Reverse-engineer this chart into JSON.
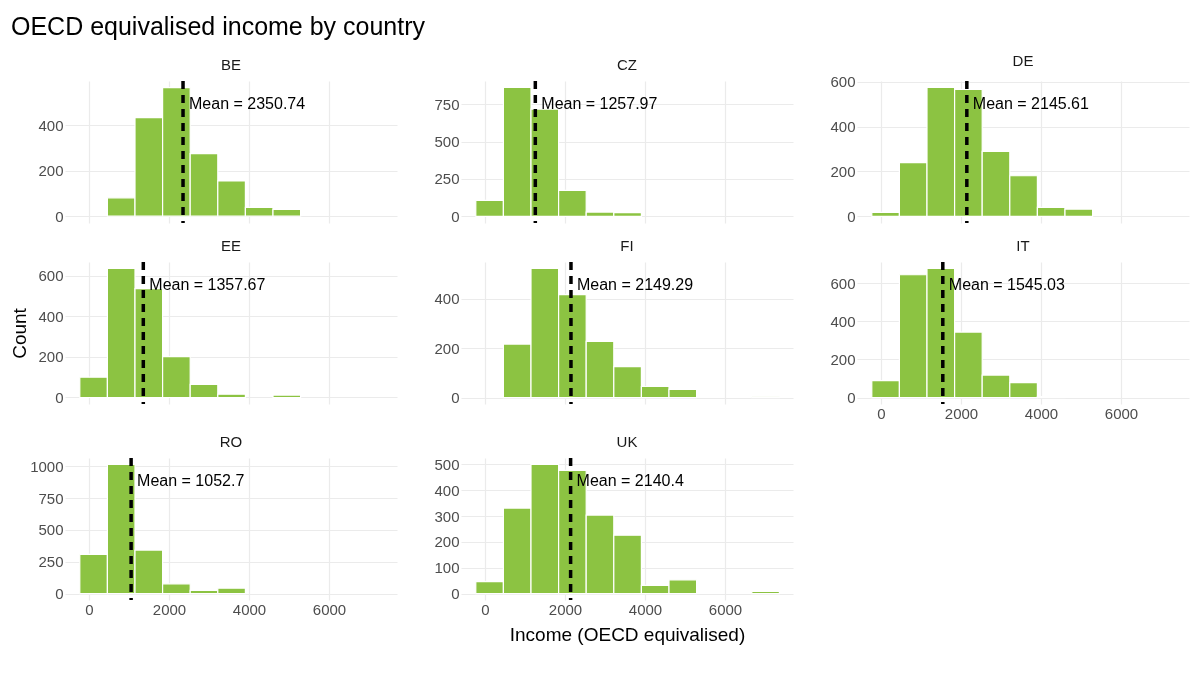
{
  "chart_data": [
    {
      "type": "histogram",
      "title": "BE",
      "annotations": [
        "OECD equivalised income by country"
      ],
      "bins": [
        -230,
        460,
        1150,
        1840,
        2530,
        3220,
        3910,
        4600,
        5290,
        5980,
        6670,
        7360
      ],
      "values": [
        0,
        81,
        434,
        566,
        275,
        155,
        39,
        30,
        0,
        0,
        0
      ],
      "color": "#8cc342",
      "xlim": [
        -600,
        7700
      ],
      "xticks": [
        0,
        2000,
        4000,
        6000
      ],
      "ylim": [
        -30,
        595
      ],
      "yticks": [
        0,
        200,
        400
      ],
      "grid": true,
      "tick_labels": "y",
      "ref_lines": [
        {
          "axis": "x",
          "value": 2350.74,
          "label": "Mean = 2350.74",
          "color": "#000000",
          "line_style": "dashed"
        }
      ]
    },
    {
      "type": "histogram",
      "title": "CZ",
      "bins": [
        -230,
        460,
        1150,
        1840,
        2530,
        3220,
        3910,
        4600,
        5290,
        5980,
        6670,
        7360
      ],
      "values": [
        107,
        863,
        718,
        173,
        28,
        25,
        0,
        0,
        0,
        0,
        0
      ],
      "color": "#8cc342",
      "xlim": [
        -600,
        7700
      ],
      "xticks": [
        0,
        2000,
        4000,
        6000
      ],
      "ylim": [
        -45,
        906
      ],
      "yticks": [
        0,
        250,
        500,
        750
      ],
      "grid": true,
      "tick_labels": "y",
      "ref_lines": [
        {
          "axis": "x",
          "value": 1257.97,
          "label": "Mean = 1257.97",
          "color": "#000000",
          "line_style": "dashed"
        }
      ]
    },
    {
      "type": "histogram",
      "title": "DE",
      "bins": [
        -230,
        460,
        1150,
        1840,
        2530,
        3220,
        3910,
        4600,
        5290,
        5980,
        6670,
        7360
      ],
      "values": [
        17,
        240,
        575,
        566,
        290,
        181,
        40,
        32,
        0,
        0,
        0
      ],
      "color": "#8cc342",
      "xlim": [
        -600,
        7700
      ],
      "xticks": [
        0,
        2000,
        4000,
        6000
      ],
      "ylim": [
        -30,
        604
      ],
      "yticks": [
        0,
        200,
        400,
        600
      ],
      "grid": true,
      "tick_labels": "y",
      "ref_lines": [
        {
          "axis": "x",
          "value": 2145.61,
          "label": "Mean = 2145.61",
          "color": "#000000",
          "line_style": "dashed"
        }
      ]
    },
    {
      "type": "histogram",
      "title": "EE",
      "ylabel": "Count",
      "bins": [
        -230,
        460,
        1150,
        1840,
        2530,
        3220,
        3910,
        4600,
        5290,
        5980,
        6670,
        7360
      ],
      "values": [
        100,
        635,
        536,
        201,
        65,
        16,
        0,
        12,
        0,
        0,
        0
      ],
      "color": "#8cc342",
      "xlim": [
        -600,
        7700
      ],
      "xticks": [
        0,
        2000,
        4000,
        6000
      ],
      "ylim": [
        -32,
        667
      ],
      "yticks": [
        0,
        200,
        400,
        600
      ],
      "grid": true,
      "tick_labels": "y",
      "ref_lines": [
        {
          "axis": "x",
          "value": 1357.67,
          "label": "Mean = 1357.67",
          "color": "#000000",
          "line_style": "dashed"
        }
      ]
    },
    {
      "type": "histogram",
      "title": "FI",
      "bins": [
        -230,
        460,
        1150,
        1840,
        2530,
        3220,
        3910,
        4600,
        5290,
        5980,
        6670,
        7360
      ],
      "values": [
        0,
        217,
        524,
        418,
        228,
        126,
        45,
        33,
        0,
        0,
        3
      ],
      "color": "#8cc342",
      "xlim": [
        -600,
        7700
      ],
      "xticks": [
        0,
        2000,
        4000,
        6000
      ],
      "ylim": [
        -26,
        550
      ],
      "yticks": [
        0,
        200,
        400
      ],
      "grid": true,
      "tick_labels": "y",
      "ref_lines": [
        {
          "axis": "x",
          "value": 2149.29,
          "label": "Mean = 2149.29",
          "color": "#000000",
          "line_style": "dashed"
        }
      ]
    },
    {
      "type": "histogram",
      "title": "IT",
      "bins": [
        -230,
        460,
        1150,
        1840,
        2530,
        3220,
        3910,
        4600,
        5290,
        5980,
        6670,
        7360
      ],
      "values": [
        89,
        645,
        678,
        344,
        118,
        78,
        5,
        0,
        0,
        0,
        0
      ],
      "color": "#8cc342",
      "xlim": [
        -600,
        7700
      ],
      "xticks": [
        0,
        2000,
        4000,
        6000
      ],
      "ylim": [
        -34,
        712
      ],
      "yticks": [
        0,
        200,
        400,
        600
      ],
      "grid": true,
      "ref_lines": [
        {
          "axis": "x",
          "value": 1545.03,
          "label": "Mean = 1545.03",
          "color": "#000000",
          "line_style": "dashed"
        }
      ]
    },
    {
      "type": "histogram",
      "title": "RO",
      "bins": [
        -230,
        460,
        1150,
        1840,
        2530,
        3220,
        3910,
        4600,
        5290,
        5980,
        6670,
        7360
      ],
      "values": [
        308,
        1013,
        342,
        77,
        26,
        43,
        0,
        0,
        0,
        0,
        0
      ],
      "color": "#8cc342",
      "xlim": [
        -600,
        7700
      ],
      "xticks": [
        0,
        2000,
        4000,
        6000
      ],
      "ylim": [
        -50,
        1064
      ],
      "yticks": [
        0,
        250,
        500,
        750,
        1000
      ],
      "grid": true,
      "ref_lines": [
        {
          "axis": "x",
          "value": 1052.7,
          "label": "Mean = 1052.7",
          "color": "#000000",
          "line_style": "dashed"
        }
      ]
    },
    {
      "type": "histogram",
      "title": "UK",
      "xlabel": "Income (OECD equivalised)",
      "bins": [
        -230,
        460,
        1150,
        1840,
        2530,
        3220,
        3910,
        4600,
        5290,
        5980,
        6670,
        7360
      ],
      "values": [
        46,
        331,
        500,
        477,
        304,
        226,
        32,
        53,
        0,
        0,
        8
      ],
      "color": "#8cc342",
      "xlim": [
        -600,
        7700
      ],
      "xticks": [
        0,
        2000,
        4000,
        6000
      ],
      "ylim": [
        -25,
        525
      ],
      "yticks": [
        0,
        100,
        200,
        300,
        400,
        500
      ],
      "grid": true,
      "ref_lines": [
        {
          "axis": "x",
          "value": 2140.4,
          "label": "Mean = 2140.4",
          "color": "#000000",
          "line_style": "dashed"
        }
      ]
    }
  ]
}
